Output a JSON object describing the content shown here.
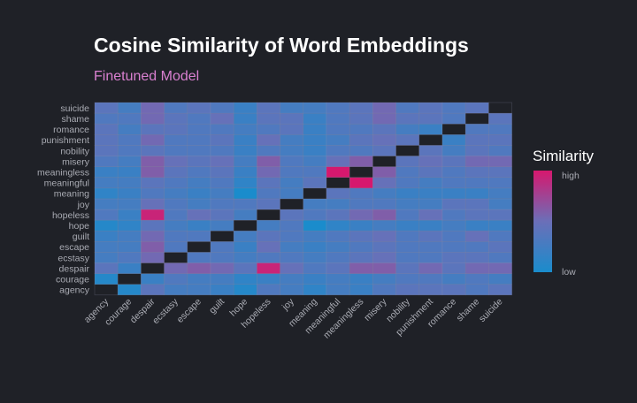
{
  "chart_data": {
    "type": "heatmap",
    "title": "Cosine Similarity of Word Embeddings",
    "subtitle": "Finetuned Model",
    "words": [
      "agency",
      "courage",
      "despair",
      "ecstasy",
      "escape",
      "guilt",
      "hope",
      "hopeless",
      "joy",
      "meaning",
      "meaningful",
      "meaningless",
      "misery",
      "nobility",
      "punishment",
      "romance",
      "shame",
      "suicide"
    ],
    "matrix": [
      [
        1.0,
        0.2,
        0.45,
        0.35,
        0.35,
        0.3,
        0.2,
        0.4,
        0.35,
        0.25,
        0.35,
        0.3,
        0.4,
        0.45,
        0.45,
        0.45,
        0.4,
        0.45
      ],
      [
        0.2,
        1.0,
        0.3,
        0.4,
        0.35,
        0.35,
        0.25,
        0.3,
        0.35,
        0.3,
        0.35,
        0.3,
        0.35,
        0.4,
        0.4,
        0.35,
        0.4,
        0.35
      ],
      [
        0.45,
        0.3,
        1.0,
        0.55,
        0.6,
        0.55,
        0.45,
        0.85,
        0.5,
        0.4,
        0.45,
        0.6,
        0.6,
        0.45,
        0.55,
        0.45,
        0.55,
        0.55
      ],
      [
        0.35,
        0.4,
        0.55,
        1.0,
        0.4,
        0.4,
        0.35,
        0.4,
        0.4,
        0.35,
        0.4,
        0.45,
        0.5,
        0.4,
        0.4,
        0.45,
        0.45,
        0.4
      ],
      [
        0.35,
        0.35,
        0.6,
        0.4,
        1.0,
        0.4,
        0.3,
        0.5,
        0.35,
        0.3,
        0.35,
        0.4,
        0.45,
        0.4,
        0.4,
        0.4,
        0.4,
        0.45
      ],
      [
        0.3,
        0.35,
        0.55,
        0.4,
        0.4,
        1.0,
        0.35,
        0.45,
        0.4,
        0.35,
        0.4,
        0.45,
        0.5,
        0.4,
        0.45,
        0.4,
        0.5,
        0.4
      ],
      [
        0.2,
        0.25,
        0.45,
        0.35,
        0.3,
        0.35,
        1.0,
        0.35,
        0.4,
        0.15,
        0.25,
        0.3,
        0.35,
        0.3,
        0.3,
        0.35,
        0.3,
        0.3
      ],
      [
        0.4,
        0.3,
        0.85,
        0.4,
        0.5,
        0.45,
        0.35,
        1.0,
        0.45,
        0.4,
        0.45,
        0.55,
        0.6,
        0.4,
        0.5,
        0.4,
        0.45,
        0.45
      ],
      [
        0.35,
        0.35,
        0.5,
        0.4,
        0.35,
        0.4,
        0.4,
        0.45,
        1.0,
        0.35,
        0.35,
        0.4,
        0.4,
        0.35,
        0.35,
        0.45,
        0.45,
        0.35
      ],
      [
        0.25,
        0.3,
        0.4,
        0.35,
        0.3,
        0.35,
        0.15,
        0.4,
        0.35,
        1.0,
        0.45,
        0.4,
        0.35,
        0.3,
        0.3,
        0.3,
        0.3,
        0.35
      ],
      [
        0.35,
        0.35,
        0.45,
        0.4,
        0.35,
        0.4,
        0.25,
        0.45,
        0.35,
        0.45,
        1.0,
        0.9,
        0.5,
        0.4,
        0.35,
        0.4,
        0.4,
        0.4
      ],
      [
        0.3,
        0.3,
        0.6,
        0.45,
        0.4,
        0.45,
        0.3,
        0.55,
        0.4,
        0.4,
        0.9,
        1.0,
        0.6,
        0.4,
        0.45,
        0.4,
        0.45,
        0.45
      ],
      [
        0.4,
        0.35,
        0.6,
        0.5,
        0.45,
        0.5,
        0.35,
        0.6,
        0.4,
        0.35,
        0.5,
        0.6,
        1.0,
        0.45,
        0.5,
        0.45,
        0.55,
        0.55
      ],
      [
        0.45,
        0.4,
        0.45,
        0.4,
        0.4,
        0.4,
        0.3,
        0.4,
        0.35,
        0.3,
        0.4,
        0.4,
        0.45,
        1.0,
        0.45,
        0.35,
        0.45,
        0.4
      ],
      [
        0.45,
        0.4,
        0.55,
        0.4,
        0.4,
        0.45,
        0.3,
        0.5,
        0.35,
        0.3,
        0.35,
        0.45,
        0.5,
        0.45,
        1.0,
        0.3,
        0.45,
        0.45
      ],
      [
        0.45,
        0.35,
        0.45,
        0.45,
        0.4,
        0.4,
        0.35,
        0.4,
        0.45,
        0.3,
        0.4,
        0.4,
        0.45,
        0.35,
        0.3,
        1.0,
        0.4,
        0.4
      ],
      [
        0.4,
        0.4,
        0.55,
        0.45,
        0.4,
        0.5,
        0.3,
        0.45,
        0.45,
        0.3,
        0.4,
        0.45,
        0.55,
        0.45,
        0.45,
        0.4,
        1.0,
        0.45
      ],
      [
        0.45,
        0.35,
        0.55,
        0.4,
        0.45,
        0.4,
        0.3,
        0.45,
        0.35,
        0.35,
        0.4,
        0.45,
        0.55,
        0.4,
        0.45,
        0.4,
        0.45,
        1.0
      ]
    ],
    "diagonal_color": "#1f2127",
    "color_scale": {
      "low": "#1a8ccc",
      "mid": "#6b6fb8",
      "high": "#d6186e"
    },
    "legend": {
      "title": "Similarity",
      "high_label": "high",
      "low_label": "low",
      "position": "right"
    },
    "grid": false
  }
}
